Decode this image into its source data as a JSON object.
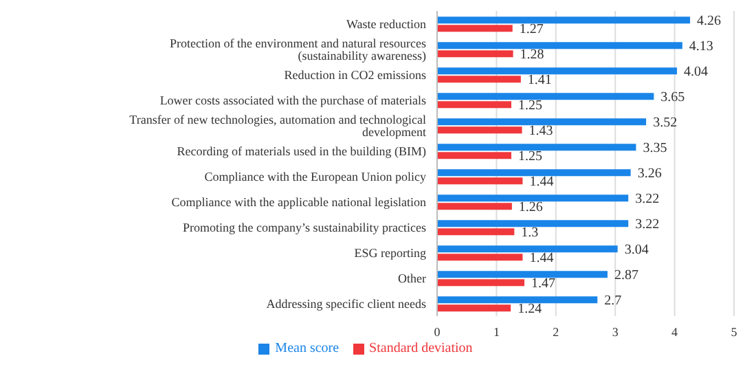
{
  "chart_data": {
    "type": "bar",
    "orientation": "horizontal",
    "categories": [
      "Waste reduction",
      "Protection of the environment and natural resources (sustainability awareness)",
      "Reduction in CO2 emissions",
      "Lower costs associated with the purchase of materials",
      "Transfer of new technologies, automation and technological development",
      "Recording of materials used in the building (BIM)",
      "Compliance with the European Union policy",
      "Compliance with the applicable national legislation",
      "Promoting the company’s sustainability practices",
      "ESG reporting",
      "Other",
      "Addressing specific client needs"
    ],
    "series": [
      {
        "name": "Mean score",
        "color": "#1a85e8",
        "values": [
          4.26,
          4.13,
          4.04,
          3.65,
          3.52,
          3.35,
          3.26,
          3.22,
          3.22,
          3.04,
          2.87,
          2.7
        ]
      },
      {
        "name": "Standard deviation",
        "color": "#f0383c",
        "values": [
          1.27,
          1.28,
          1.41,
          1.25,
          1.43,
          1.25,
          1.44,
          1.26,
          1.3,
          1.44,
          1.47,
          1.24
        ]
      }
    ],
    "xlim": [
      0,
      5
    ],
    "xticks": [
      0,
      1,
      2,
      3,
      4,
      5
    ],
    "grid": "x",
    "legend": "bottom",
    "data_labels": true
  }
}
